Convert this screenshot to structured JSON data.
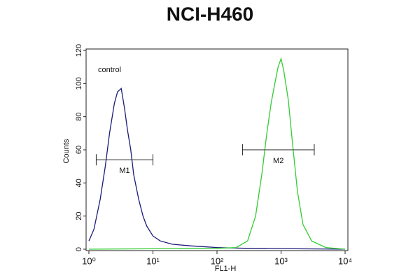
{
  "chart_data": {
    "type": "line",
    "title": "NCI-H460",
    "xlabel": "FL1-H",
    "ylabel": "Counts",
    "xscale": "log",
    "xlim": [
      1,
      10000
    ],
    "xticks": [
      {
        "value": 1,
        "label": "10⁰"
      },
      {
        "value": 10,
        "label": "10¹"
      },
      {
        "value": 100,
        "label": "10²"
      },
      {
        "value": 1000,
        "label": "10³"
      },
      {
        "value": 10000,
        "label": "10⁴"
      }
    ],
    "ylim": [
      0,
      120
    ],
    "yticks": [
      0,
      20,
      40,
      60,
      80,
      100,
      120
    ],
    "series": [
      {
        "name": "control",
        "color": "#1b1b7a",
        "x": [
          1,
          1.2,
          1.5,
          1.8,
          2.1,
          2.5,
          2.8,
          3.2,
          3.6,
          4,
          4.5,
          5,
          6,
          7,
          8,
          10,
          13,
          20,
          40,
          100,
          300,
          10000
        ],
        "values": [
          5,
          12,
          30,
          50,
          70,
          88,
          95,
          97,
          85,
          72,
          60,
          45,
          30,
          20,
          14,
          8,
          5,
          3,
          2,
          1,
          0.5,
          0
        ]
      },
      {
        "color": "#33cc33",
        "x": [
          1,
          100,
          200,
          300,
          400,
          500,
          600,
          700,
          800,
          900,
          1000,
          1100,
          1300,
          1500,
          1800,
          2200,
          3000,
          5000,
          10000
        ],
        "values": [
          0,
          0.5,
          1,
          5,
          20,
          45,
          70,
          88,
          100,
          110,
          115,
          108,
          90,
          65,
          35,
          15,
          5,
          1,
          0
        ]
      }
    ],
    "gates": [
      {
        "label": "M1",
        "range": [
          1.3,
          10
        ],
        "level": 54
      },
      {
        "label": "M2",
        "range": [
          250,
          3300
        ],
        "level": 60
      }
    ]
  }
}
